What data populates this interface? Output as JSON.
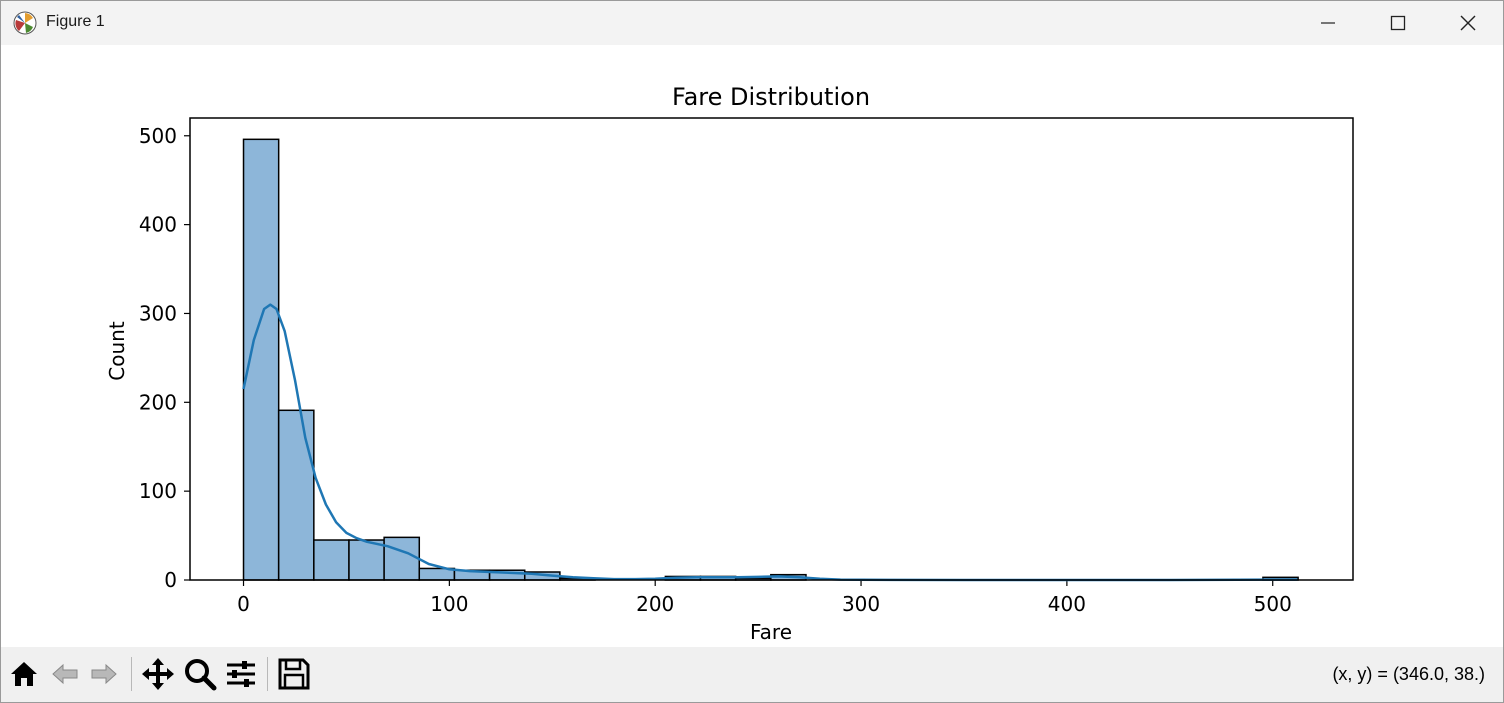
{
  "window": {
    "title": "Figure 1"
  },
  "chart_data": {
    "type": "bar",
    "title": "Fare Distribution",
    "xlabel": "Fare",
    "ylabel": "Count",
    "xlim": [
      -26,
      539
    ],
    "ylim": [
      0,
      520
    ],
    "xticks": [
      0,
      100,
      200,
      300,
      400,
      500
    ],
    "yticks": [
      0,
      100,
      200,
      300,
      400,
      500
    ],
    "bins": [
      {
        "x0": 0,
        "x1": 17.08,
        "count": 496
      },
      {
        "x0": 17.08,
        "x1": 34.16,
        "count": 191
      },
      {
        "x0": 34.16,
        "x1": 51.23,
        "count": 45
      },
      {
        "x0": 51.23,
        "x1": 68.31,
        "count": 45
      },
      {
        "x0": 68.31,
        "x1": 85.39,
        "count": 48
      },
      {
        "x0": 85.39,
        "x1": 102.47,
        "count": 13
      },
      {
        "x0": 102.47,
        "x1": 119.55,
        "count": 11
      },
      {
        "x0": 119.55,
        "x1": 136.62,
        "count": 11
      },
      {
        "x0": 136.62,
        "x1": 153.7,
        "count": 9
      },
      {
        "x0": 153.7,
        "x1": 170.78,
        "count": 2
      },
      {
        "x0": 170.78,
        "x1": 187.86,
        "count": 0
      },
      {
        "x0": 187.86,
        "x1": 204.94,
        "count": 0
      },
      {
        "x0": 204.94,
        "x1": 222.01,
        "count": 4
      },
      {
        "x0": 222.01,
        "x1": 239.09,
        "count": 4
      },
      {
        "x0": 239.09,
        "x1": 256.17,
        "count": 2
      },
      {
        "x0": 256.17,
        "x1": 273.25,
        "count": 6
      },
      {
        "x0": 273.25,
        "x1": 290.33,
        "count": 0
      },
      {
        "x0": 495.25,
        "x1": 512.33,
        "count": 3
      }
    ],
    "kde": {
      "name": "KDE",
      "x": [
        0,
        5,
        10,
        13,
        16,
        20,
        25,
        30,
        35,
        40,
        45,
        50,
        55,
        60,
        70,
        80,
        90,
        100,
        110,
        120,
        130,
        140,
        150,
        160,
        170,
        180,
        190,
        200,
        210,
        220,
        230,
        240,
        250,
        260,
        270,
        280,
        290,
        300,
        350,
        400,
        450,
        500,
        512
      ],
      "y": [
        215,
        270,
        305,
        310,
        305,
        280,
        225,
        160,
        115,
        85,
        65,
        53,
        47,
        43,
        38,
        30,
        18,
        12,
        10,
        9,
        8,
        7,
        5,
        3,
        2,
        1,
        1,
        1.5,
        2.5,
        3,
        3,
        3,
        3.5,
        4,
        3,
        1.5,
        0.5,
        0.2,
        0,
        0,
        0,
        0.5,
        0.5
      ]
    },
    "colors": {
      "bar_fill": "#8db6d9",
      "bar_edge": "#000000",
      "kde_line": "#1f77b4"
    }
  },
  "toolbar": {
    "icons": [
      "home-icon",
      "back-icon",
      "forward-icon",
      "pan-icon",
      "zoom-icon",
      "subplots-icon",
      "save-icon"
    ],
    "coords": "(x, y) = (346.0, 38.)"
  }
}
